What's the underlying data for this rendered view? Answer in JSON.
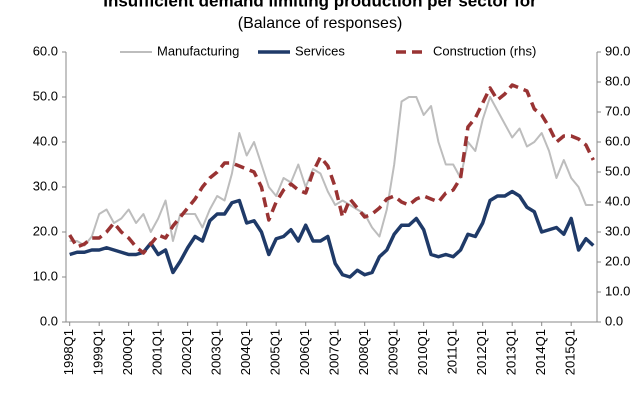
{
  "chart_data": {
    "type": "line",
    "title": "Insufficient demand limiting production per sector for",
    "subtitle": "(Balance of responses)",
    "categories": [
      "1998Q1",
      null,
      null,
      null,
      "1999Q1",
      null,
      null,
      null,
      "2000Q1",
      null,
      null,
      null,
      "2001Q1",
      null,
      null,
      null,
      "2002Q1",
      null,
      null,
      null,
      "2003Q1",
      null,
      null,
      null,
      "2004Q1",
      null,
      null,
      null,
      "2005Q1",
      null,
      null,
      null,
      "2006Q1",
      null,
      null,
      null,
      "2007Q1",
      null,
      null,
      null,
      "2008Q1",
      null,
      null,
      null,
      "2009Q1",
      null,
      null,
      null,
      "2010Q1",
      null,
      null,
      null,
      "2011Q1",
      null,
      null,
      null,
      "2012Q1",
      null,
      null,
      null,
      "2013Q1",
      null,
      null,
      null,
      "2014Q1",
      null,
      null,
      null,
      "2015Q1",
      null,
      null,
      null
    ],
    "series": [
      {
        "name": "Manufacturing",
        "color": "#bdbdbd",
        "style": "solid",
        "axis": "y",
        "values": [
          18,
          18,
          17,
          19,
          24,
          25,
          22,
          23,
          25,
          22,
          24,
          20,
          23,
          27,
          18,
          24,
          24,
          24,
          21,
          25,
          28,
          27,
          33,
          42,
          37,
          40,
          35,
          30,
          28,
          32,
          31,
          35,
          30,
          34,
          33,
          29,
          26,
          27,
          26,
          25,
          24,
          21,
          19,
          25,
          35,
          49,
          50,
          50,
          46,
          48,
          40,
          35,
          35,
          32,
          40,
          38,
          45,
          50,
          47,
          44,
          41,
          43,
          39,
          40,
          42,
          38,
          32,
          36,
          32,
          30,
          26,
          26
        ]
      },
      {
        "name": "Services",
        "color": "#1f3a68",
        "style": "solid",
        "axis": "y",
        "values": [
          15,
          15.5,
          15.5,
          16,
          16,
          16.5,
          16,
          15.5,
          15,
          15,
          15.5,
          17.5,
          15,
          16,
          11,
          13.5,
          16.5,
          19,
          18,
          22.5,
          24,
          24,
          26.5,
          27,
          22,
          22.5,
          20,
          15,
          18.5,
          19,
          20.5,
          18,
          21.5,
          18,
          18,
          19,
          13,
          10.5,
          10,
          11.5,
          10.5,
          11,
          14.5,
          16,
          19.5,
          21.5,
          21.5,
          23,
          20.5,
          15,
          14.5,
          15,
          14.5,
          16,
          19.5,
          19,
          22,
          27,
          28,
          28,
          29,
          28,
          25.5,
          24.5,
          20,
          20.5,
          21,
          19.5,
          23,
          16,
          18.5,
          17
        ]
      },
      {
        "name": "Construction (rhs)",
        "color": "#993333",
        "style": "dashed",
        "axis": "y2",
        "values": [
          29,
          25,
          26,
          28,
          28,
          30,
          33,
          30,
          28,
          25,
          23,
          26,
          29,
          28,
          32,
          35,
          38,
          41,
          45,
          48,
          50,
          53,
          53,
          52,
          51,
          50,
          45,
          34,
          40,
          44,
          46,
          44,
          43,
          50,
          55,
          52,
          45,
          35,
          41,
          38,
          35,
          36,
          38,
          41,
          42,
          40,
          39,
          41,
          42,
          41,
          40,
          43,
          44,
          48,
          65,
          68,
          73,
          78,
          74,
          76,
          79,
          78,
          77,
          71,
          69,
          65,
          60,
          62,
          62,
          61,
          59,
          54
        ]
      }
    ],
    "ylim": [
      0,
      60
    ],
    "yticks": [
      {
        "value": 0,
        "label": "0.0"
      },
      {
        "value": 10,
        "label": "10.0"
      },
      {
        "value": 20,
        "label": "20.0"
      },
      {
        "value": 30,
        "label": "30.0"
      },
      {
        "value": 40,
        "label": "40.0"
      },
      {
        "value": 50,
        "label": "50.0"
      },
      {
        "value": 60,
        "label": "60.0"
      }
    ],
    "y2lim": [
      0,
      90
    ],
    "y2ticks": [
      {
        "value": 0,
        "label": "0.0"
      },
      {
        "value": 10,
        "label": "10.0"
      },
      {
        "value": 20,
        "label": "20.0"
      },
      {
        "value": 30,
        "label": "30.0"
      },
      {
        "value": 40,
        "label": "40.0"
      },
      {
        "value": 50,
        "label": "50.0"
      },
      {
        "value": 60,
        "label": "60.0"
      },
      {
        "value": 70,
        "label": "70.0"
      },
      {
        "value": 80,
        "label": "80.0"
      },
      {
        "value": 90,
        "label": "90.0"
      }
    ],
    "grid": false,
    "legend": "top"
  }
}
